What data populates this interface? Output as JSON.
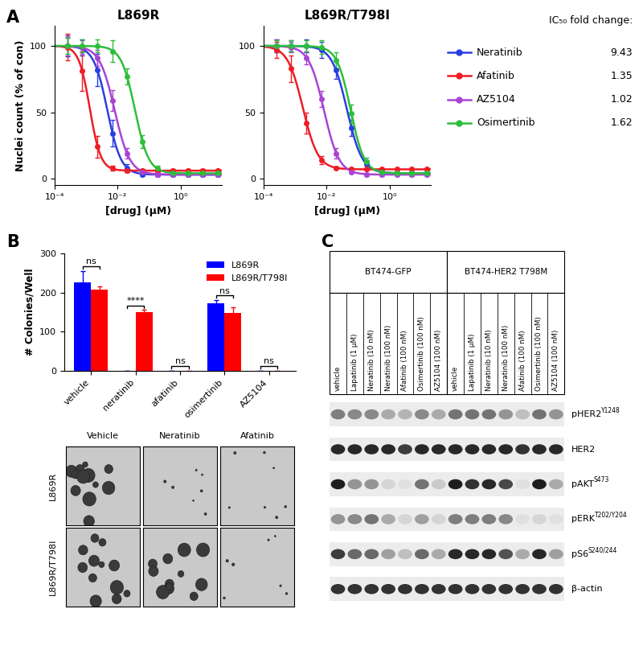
{
  "panel_labels": [
    "A",
    "B",
    "C"
  ],
  "chart_data": [
    {
      "type": "line",
      "title": "L869R",
      "x_label": "[drug] (μM)",
      "y_label": "Nuclei count (% of con)",
      "log": "x",
      "x": [
        0.00025,
        0.00075,
        0.0023,
        0.0068,
        0.02,
        0.061,
        0.18,
        0.55,
        1.7,
        5,
        15
      ],
      "xlim": [
        0.0001,
        20
      ],
      "xticks": [
        {
          "value": 0.0001,
          "label": "10⁻⁴"
        },
        {
          "value": 0.01,
          "label": "10⁻²"
        },
        {
          "value": 1,
          "label": "10⁰"
        }
      ],
      "ylim": [
        -5,
        115
      ],
      "yticks": [
        0,
        50,
        100
      ],
      "marker": "o",
      "line_style": "solid",
      "series": [
        {
          "name": "Neratinib",
          "color": "#2b3ee0",
          "values": [
            100,
            99,
            82,
            34,
            8,
            3,
            3,
            3,
            3,
            3,
            3
          ],
          "error": [
            8,
            6,
            12,
            10,
            3,
            1,
            1,
            1,
            1,
            1,
            1
          ],
          "fit": {
            "ic50": 0.0047,
            "hill": 2,
            "top": 100,
            "bottom": 3
          }
        },
        {
          "name": "Afatinib",
          "color": "#ee1c25",
          "values": [
            99,
            81,
            24,
            8,
            6,
            6,
            6,
            6,
            6,
            6,
            6
          ],
          "error": [
            10,
            15,
            8,
            2,
            1,
            1,
            1,
            1,
            1,
            1,
            1
          ],
          "fit": {
            "ic50": 0.0013,
            "hill": 2.5,
            "top": 100,
            "bottom": 6
          }
        },
        {
          "name": "AZ5104",
          "color": "#a943d6",
          "values": [
            100,
            99,
            91,
            59,
            19,
            5,
            3,
            3,
            3,
            3,
            3
          ],
          "error": [
            7,
            5,
            6,
            8,
            4,
            1,
            1,
            1,
            1,
            1,
            1
          ],
          "fit": {
            "ic50": 0.008,
            "hill": 1.8,
            "top": 100,
            "bottom": 3
          }
        },
        {
          "name": "Osimertinib",
          "color": "#2dbf3a",
          "values": [
            100,
            100,
            100,
            96,
            77,
            28,
            8,
            4,
            4,
            4,
            4
          ],
          "error": [
            6,
            5,
            5,
            8,
            6,
            5,
            2,
            1,
            1,
            1,
            1
          ],
          "fit": {
            "ic50": 0.035,
            "hill": 2,
            "top": 100,
            "bottom": 4
          }
        }
      ]
    },
    {
      "type": "line",
      "title": "L869R/T798I",
      "x_label": "[drug] (μM)",
      "log": "x",
      "x": [
        0.00025,
        0.00075,
        0.0023,
        0.0068,
        0.02,
        0.061,
        0.18,
        0.55,
        1.7,
        5,
        15
      ],
      "xlim": [
        0.0001,
        20
      ],
      "xticks": [
        {
          "value": 0.0001,
          "label": "10⁻⁴"
        },
        {
          "value": 0.01,
          "label": "10⁻²"
        },
        {
          "value": 1,
          "label": "10⁰"
        }
      ],
      "ylim": [
        -5,
        115
      ],
      "yticks": [
        0,
        50,
        100
      ],
      "marker": "o",
      "line_style": "solid",
      "series": [
        {
          "name": "Neratinib",
          "color": "#2b3ee0",
          "values": [
            100,
            100,
            100,
            97,
            82,
            38,
            11,
            5,
            4,
            4,
            4
          ],
          "error": [
            5,
            4,
            5,
            6,
            7,
            6,
            3,
            1,
            1,
            1,
            1
          ],
          "fit": {
            "ic50": 0.044,
            "hill": 1.8,
            "top": 100,
            "bottom": 4
          }
        },
        {
          "name": "Afatinib",
          "color": "#ee1c25",
          "values": [
            97,
            83,
            42,
            14,
            8,
            7,
            7,
            7,
            7,
            7,
            7
          ],
          "error": [
            6,
            10,
            8,
            3,
            1,
            1,
            1,
            1,
            1,
            1,
            1
          ],
          "fit": {
            "ic50": 0.00175,
            "hill": 1.8,
            "top": 100,
            "bottom": 7
          }
        },
        {
          "name": "AZ5104",
          "color": "#a943d6",
          "values": [
            100,
            99,
            91,
            60,
            19,
            5,
            3,
            3,
            3,
            3,
            3
          ],
          "error": [
            5,
            4,
            5,
            6,
            4,
            1,
            1,
            1,
            1,
            1,
            1
          ],
          "fit": {
            "ic50": 0.0082,
            "hill": 1.8,
            "top": 100,
            "bottom": 3
          }
        },
        {
          "name": "Osimertinib",
          "color": "#2dbf3a",
          "values": [
            100,
            100,
            100,
            99,
            89,
            49,
            13,
            5,
            4,
            4,
            4
          ],
          "error": [
            4,
            4,
            4,
            5,
            6,
            7,
            3,
            1,
            1,
            1,
            1
          ],
          "fit": {
            "ic50": 0.057,
            "hill": 2,
            "top": 100,
            "bottom": 4
          }
        }
      ]
    },
    {
      "type": "bar",
      "y_label": "# Colonies/Well",
      "categories": [
        "vehicle",
        "neratinib",
        "afatinib",
        "osimertinib",
        "AZ5104"
      ],
      "ylim": [
        0,
        300
      ],
      "yticks": [
        0,
        100,
        200,
        300
      ],
      "legend": "upper right",
      "series": [
        {
          "name": "L869R",
          "color": "#0000ff",
          "values": [
            225,
            0,
            0,
            172,
            0
          ],
          "error": [
            30,
            0,
            0,
            8,
            0
          ]
        },
        {
          "name": "L869R/T798I",
          "color": "#ff0000",
          "values": [
            208,
            150,
            0,
            148,
            0
          ],
          "error": [
            7,
            5,
            0,
            14,
            0
          ]
        }
      ],
      "significance": [
        "ns",
        "****",
        "ns",
        "ns",
        "ns"
      ]
    }
  ],
  "ic50_fold_change": {
    "label": "IC₅₀ fold change:",
    "values": [
      9.43,
      1.35,
      1.02,
      1.62
    ]
  },
  "colony_images": {
    "columns": [
      "Vehicle",
      "Neratinib",
      "Afatinib"
    ],
    "rows": [
      "L869R",
      "L869R/T798I"
    ]
  },
  "blot": {
    "groups": [
      "BT474-GFP",
      "BT474-HER2 T798M"
    ],
    "lanes": [
      "vehicle",
      "Lapatinib (1 μM)",
      "Neratinib (10 nM)",
      "Neratinib (100 nM)",
      "Afatinib (100 nM)",
      "Osimertinib (100 nM)",
      "AZ5104 (100 nM)"
    ],
    "rows": [
      {
        "name": "pHER2",
        "site": "Y1248",
        "intensity": [
          0.5,
          0.45,
          0.45,
          0.3,
          0.25,
          0.45,
          0.3,
          0.55,
          0.55,
          0.55,
          0.4,
          0.2,
          0.55,
          0.4
        ]
      },
      {
        "name": "HER2",
        "intensity": [
          0.9,
          0.9,
          0.9,
          0.9,
          0.8,
          0.9,
          0.9,
          0.9,
          0.9,
          0.9,
          0.9,
          0.85,
          0.9,
          0.9
        ]
      },
      {
        "name": "pAKT",
        "site": "S473",
        "intensity": [
          0.95,
          0.4,
          0.4,
          0.1,
          0.05,
          0.55,
          0.15,
          0.95,
          0.85,
          0.9,
          0.75,
          0.05,
          0.95,
          0.3
        ]
      },
      {
        "name": "pERK",
        "site": "T202/Y204",
        "intensity": [
          0.4,
          0.45,
          0.55,
          0.3,
          0.1,
          0.35,
          0.1,
          0.5,
          0.5,
          0.5,
          0.45,
          0.05,
          0.1,
          0.05
        ]
      },
      {
        "name": "pS6",
        "site": "S240/244",
        "intensity": [
          0.8,
          0.6,
          0.6,
          0.35,
          0.2,
          0.6,
          0.3,
          0.9,
          0.9,
          0.9,
          0.7,
          0.3,
          0.9,
          0.35
        ]
      },
      {
        "name": "β-actin",
        "intensity": [
          0.85,
          0.85,
          0.85,
          0.85,
          0.85,
          0.85,
          0.85,
          0.85,
          0.85,
          0.85,
          0.85,
          0.85,
          0.85,
          0.85
        ]
      }
    ]
  }
}
